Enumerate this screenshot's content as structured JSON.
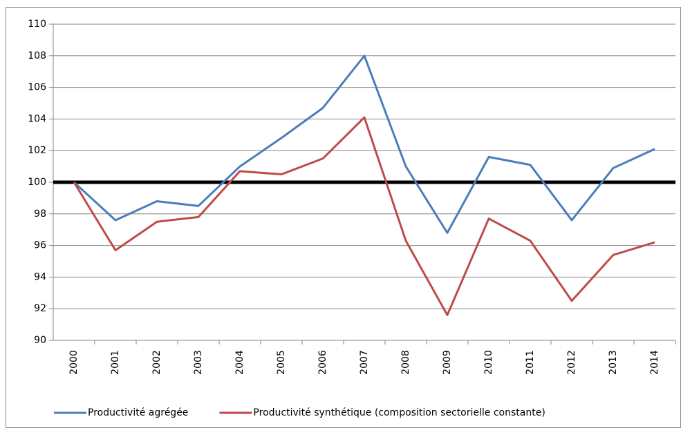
{
  "chart_data": {
    "type": "line",
    "categories": [
      "2000",
      "2001",
      "2002",
      "2003",
      "2004",
      "2005",
      "2006",
      "2007",
      "2008",
      "2009",
      "2010",
      "2011",
      "2012",
      "2013",
      "2014"
    ],
    "series": [
      {
        "name": "Productivité agrégée",
        "color": "#4a7ebb",
        "values": [
          100,
          97.6,
          98.8,
          98.5,
          101,
          102.8,
          104.7,
          108,
          101,
          96.8,
          101.6,
          101.1,
          97.6,
          100.9,
          102.1
        ]
      },
      {
        "name": "Productivité synthétique  (composition sectorielle constante)",
        "color": "#be4b48",
        "values": [
          100,
          95.7,
          97.5,
          97.8,
          100.7,
          100.5,
          101.5,
          104.1,
          96.3,
          91.6,
          97.7,
          96.3,
          92.5,
          95.4,
          96.2
        ]
      }
    ],
    "reference_line": {
      "value": 100,
      "color": "#000000"
    },
    "ylim": [
      90,
      110
    ],
    "yticks": [
      90,
      92,
      94,
      96,
      98,
      100,
      102,
      104,
      106,
      108,
      110
    ],
    "grid": true,
    "legend": "bottom"
  }
}
